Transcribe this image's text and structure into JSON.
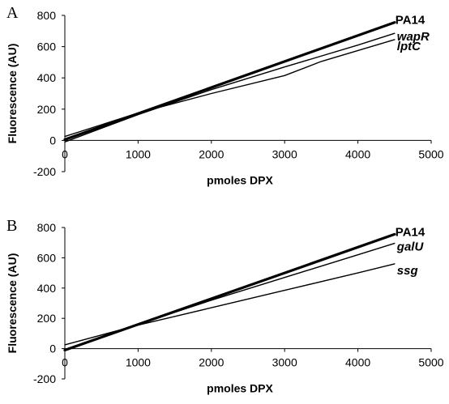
{
  "chart_data": [
    {
      "type": "line",
      "panel": "A",
      "xlabel": "pmoles DPX",
      "ylabel": "Fluorescence (AU)",
      "xlim": [
        0,
        5000
      ],
      "ylim": [
        -200,
        800
      ],
      "xticks": [
        0,
        1000,
        2000,
        3000,
        4000,
        5000
      ],
      "yticks": [
        -200,
        0,
        200,
        400,
        600,
        800
      ],
      "grid": false,
      "series": [
        {
          "name": "PA14",
          "style": "normal",
          "width": "thick",
          "x": [
            0,
            4500
          ],
          "y": [
            5,
            755
          ]
        },
        {
          "name": "wapR",
          "style": "italic",
          "width": "thin",
          "x": [
            0,
            1000,
            2000,
            3000,
            4000,
            4500
          ],
          "y": [
            -10,
            165,
            325,
            470,
            610,
            685
          ]
        },
        {
          "name": "lptC",
          "style": "italic",
          "width": "thin",
          "x": [
            0,
            1000,
            2000,
            3000,
            3500,
            4000,
            4500
          ],
          "y": [
            25,
            175,
            300,
            415,
            505,
            575,
            645
          ]
        }
      ]
    },
    {
      "type": "line",
      "panel": "B",
      "xlabel": "pmoles DPX",
      "ylabel": "Fluorescence (AU)",
      "xlim": [
        0,
        5000
      ],
      "ylim": [
        -200,
        800
      ],
      "xticks": [
        0,
        1000,
        2000,
        3000,
        4000,
        5000
      ],
      "yticks": [
        -200,
        0,
        200,
        400,
        600,
        800
      ],
      "grid": false,
      "series": [
        {
          "name": "PA14",
          "style": "normal",
          "width": "thick",
          "x": [
            0,
            4500
          ],
          "y": [
            -10,
            755
          ]
        },
        {
          "name": "galU",
          "style": "italic",
          "width": "thin",
          "x": [
            0,
            1000,
            2000,
            3000,
            4000,
            4500
          ],
          "y": [
            -5,
            160,
            320,
            470,
            620,
            695
          ]
        },
        {
          "name": "ssg",
          "style": "italic",
          "width": "thin",
          "x": [
            0,
            1000,
            2000,
            3000,
            4000,
            4500
          ],
          "y": [
            25,
            155,
            270,
            385,
            500,
            560
          ]
        }
      ]
    }
  ]
}
